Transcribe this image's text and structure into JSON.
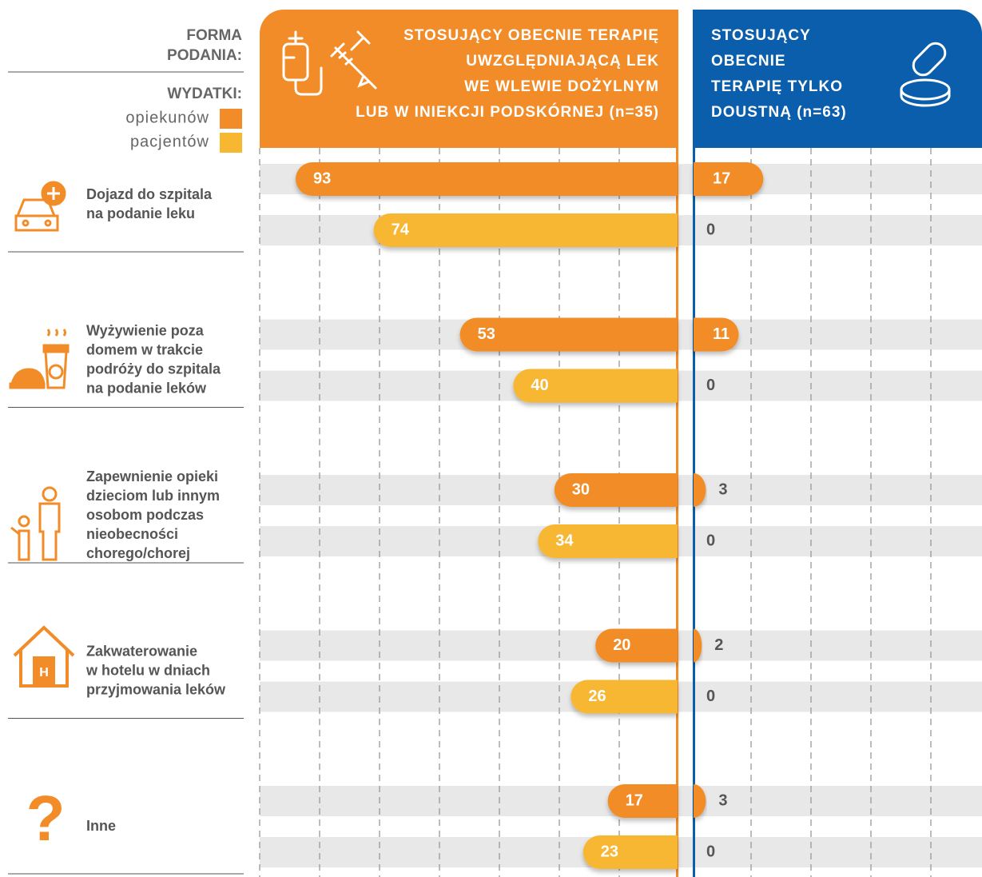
{
  "legend": {
    "form_title": [
      "FORMA",
      "PODANIA:"
    ],
    "expenses_title": "WYDATKI:"
  },
  "chart_data": {
    "type": "bar",
    "orientation": "horizontal",
    "panels": [
      {
        "title": [
          "STOSUJĄCY OBECNIE TERAPIĘ",
          "UWZGLĘDNIAJĄCĄ LEK",
          "WE WLEWIE DOŻYLNYM",
          "LUB W INIEKCJI PODSKÓRNEJ (n=35)"
        ],
        "color": "#f28c28"
      },
      {
        "title": [
          "STOSUJĄCY",
          "OBECNIE",
          "TERAPIĘ TYLKO",
          "DOUSTNĄ (n=63)"
        ],
        "color": "#0a5eab"
      }
    ],
    "categories": [
      [
        "Dojazd do szpitala",
        "na podanie leku"
      ],
      [
        "Wyżywienie poza",
        "domem w trakcie",
        "podróży do szpitala",
        "na podanie leków"
      ],
      [
        "Zapewnienie opieki",
        "dzieciom lub innym",
        "osobom podczas",
        "nieobecności",
        "chorego/chorej"
      ],
      [
        "Zakwaterowanie",
        "w hotelu w dniach",
        "przyjmowania leków"
      ],
      [
        "Inne"
      ]
    ],
    "series": [
      {
        "name": "opiekunów",
        "color": "#f28c28",
        "values": [
          93,
          53,
          30,
          20,
          17
        ],
        "oral_values": [
          17,
          11,
          3,
          2,
          3
        ]
      },
      {
        "name": "pacjentów",
        "color": "#f7b731",
        "values": [
          74,
          40,
          34,
          26,
          23
        ],
        "oral_values": [
          0,
          0,
          0,
          0,
          0
        ]
      }
    ]
  }
}
